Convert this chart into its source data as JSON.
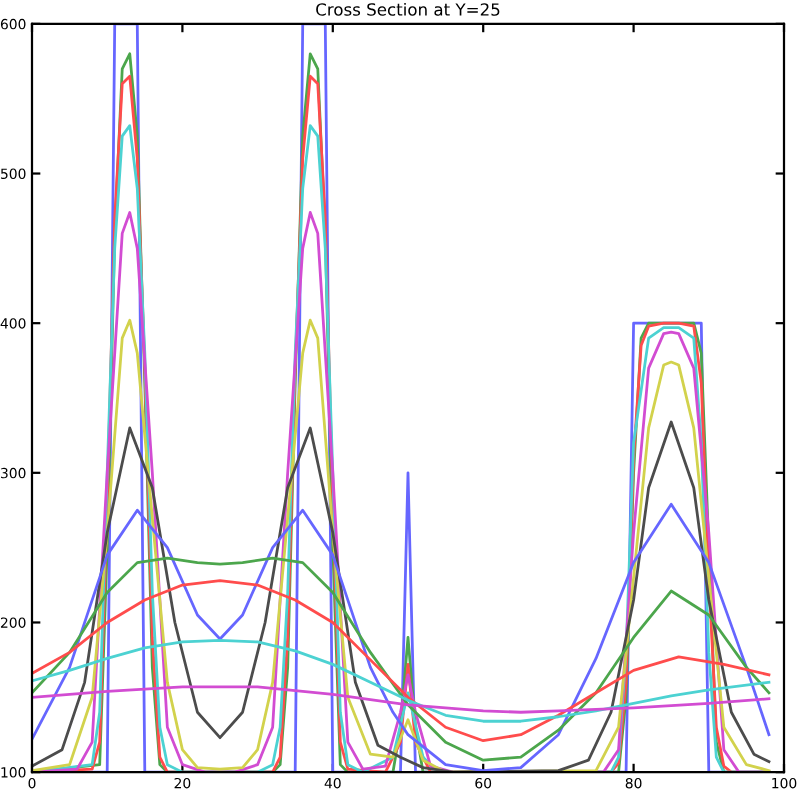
{
  "chart_data": {
    "type": "line",
    "title": "Cross Section at Y=25",
    "xlim": [
      0,
      100
    ],
    "ylim": [
      100,
      600
    ],
    "xticks": [
      0,
      20,
      40,
      60,
      80,
      100
    ],
    "yticks": [
      100,
      200,
      300,
      400,
      500,
      600
    ],
    "grid": false,
    "legend": false,
    "marker": "none",
    "line_style": "solid",
    "series": [
      {
        "color": "#6666ff",
        "x": [
          0,
          10,
          11,
          14,
          15,
          35,
          36,
          39,
          40,
          49,
          50,
          51,
          79,
          80,
          89,
          90,
          98
        ],
        "values": [
          100,
          100,
          600,
          600,
          100,
          100,
          600,
          600,
          100,
          100,
          300,
          100,
          100,
          400,
          400,
          100,
          100
        ]
      },
      {
        "color": "#4ca64c",
        "x": [
          0,
          9,
          10,
          11,
          12,
          13,
          14,
          15,
          16,
          17,
          18,
          32,
          33,
          34,
          35,
          36,
          37,
          38,
          39,
          40,
          41,
          42,
          48,
          49,
          50,
          51,
          52,
          78,
          79,
          80,
          81,
          82,
          88,
          89,
          90,
          91,
          92,
          98
        ],
        "values": [
          100,
          105,
          250,
          460,
          570,
          580,
          525,
          360,
          170,
          105,
          100,
          100,
          105,
          170,
          360,
          525,
          580,
          570,
          460,
          250,
          105,
          100,
          100,
          130,
          190,
          130,
          100,
          100,
          150,
          300,
          390,
          400,
          400,
          380,
          250,
          120,
          100,
          100
        ]
      },
      {
        "color": "#ff4c4c",
        "x": [
          0,
          8,
          9,
          10,
          11,
          12,
          13,
          14,
          15,
          16,
          17,
          18,
          32,
          33,
          34,
          35,
          36,
          37,
          38,
          39,
          40,
          41,
          42,
          47,
          49,
          50,
          51,
          53,
          77,
          78,
          79,
          80,
          81,
          82,
          84,
          86,
          88,
          89,
          90,
          91,
          92,
          93,
          98
        ],
        "values": [
          100,
          102,
          120,
          280,
          470,
          560,
          565,
          510,
          370,
          190,
          110,
          100,
          100,
          110,
          190,
          370,
          510,
          565,
          560,
          470,
          280,
          120,
          102,
          100,
          120,
          172,
          120,
          100,
          100,
          106,
          160,
          310,
          385,
          398,
          400,
          400,
          398,
          360,
          230,
          130,
          104,
          100,
          100
        ]
      },
      {
        "color": "#4cd2d2",
        "x": [
          0,
          8,
          9,
          10,
          11,
          12,
          13,
          14,
          15,
          16,
          17,
          18,
          20,
          30,
          32,
          33,
          34,
          35,
          36,
          37,
          38,
          39,
          40,
          41,
          42,
          44,
          48,
          50,
          52,
          54,
          77,
          78,
          79,
          80,
          82,
          84,
          86,
          88,
          89,
          90,
          91,
          92,
          98
        ],
        "values": [
          100,
          105,
          140,
          300,
          450,
          525,
          532,
          490,
          380,
          220,
          130,
          105,
          100,
          100,
          105,
          130,
          220,
          380,
          490,
          532,
          525,
          450,
          300,
          140,
          105,
          100,
          110,
          153,
          110,
          100,
          100,
          110,
          180,
          320,
          390,
          397,
          397,
          390,
          320,
          180,
          110,
          100,
          100
        ]
      },
      {
        "color": "#d24cd2",
        "x": [
          0,
          6,
          8,
          10,
          12,
          13,
          14,
          16,
          18,
          20,
          23,
          27,
          30,
          32,
          34,
          36,
          37,
          38,
          40,
          42,
          44,
          47,
          49,
          50,
          51,
          53,
          56,
          76,
          78,
          80,
          82,
          84,
          85,
          86,
          88,
          90,
          92,
          94,
          98
        ],
        "values": [
          100,
          102,
          120,
          300,
          460,
          474,
          450,
          300,
          130,
          105,
          100,
          100,
          105,
          130,
          300,
          450,
          474,
          460,
          300,
          120,
          102,
          104,
          140,
          165,
          140,
          104,
          100,
          100,
          115,
          260,
          370,
          393,
          394,
          393,
          370,
          260,
          115,
          100,
          100
        ]
      },
      {
        "color": "#d2d24c",
        "x": [
          0,
          5,
          8,
          10,
          12,
          13,
          14,
          16,
          18,
          20,
          22,
          25,
          28,
          30,
          32,
          34,
          36,
          37,
          38,
          40,
          42,
          45,
          48,
          50,
          52,
          55,
          75,
          78,
          80,
          82,
          84,
          85,
          86,
          88,
          90,
          92,
          95,
          98
        ],
        "values": [
          101,
          105,
          150,
          260,
          390,
          402,
          380,
          270,
          160,
          115,
          103,
          102,
          103,
          115,
          160,
          270,
          380,
          402,
          390,
          260,
          150,
          112,
          110,
          135,
          108,
          100,
          101,
          130,
          230,
          330,
          372,
          374,
          372,
          330,
          230,
          130,
          105,
          101
        ]
      },
      {
        "color": "#4c4c4c",
        "x": [
          0,
          4,
          7,
          10,
          13,
          16,
          19,
          22,
          25,
          28,
          31,
          34,
          37,
          40,
          43,
          46,
          49,
          52,
          56,
          70,
          74,
          77,
          80,
          82,
          85,
          88,
          90,
          93,
          96,
          98
        ],
        "values": [
          104,
          115,
          160,
          260,
          330,
          290,
          200,
          140,
          123,
          140,
          200,
          290,
          330,
          260,
          160,
          118,
          110,
          103,
          100,
          101,
          108,
          140,
          215,
          290,
          334,
          290,
          215,
          140,
          112,
          107
        ]
      },
      {
        "color": "#6666ff",
        "x": [
          0,
          5,
          10,
          14,
          18,
          22,
          25,
          28,
          32,
          36,
          40,
          45,
          48,
          50,
          55,
          60,
          65,
          70,
          75,
          80,
          85,
          90,
          95,
          98
        ],
        "values": [
          122,
          170,
          245,
          275,
          250,
          205,
          189,
          205,
          250,
          275,
          245,
          170,
          140,
          125,
          105,
          101,
          103,
          125,
          176,
          240,
          279,
          240,
          170,
          125
        ]
      },
      {
        "color": "#4ca64c",
        "x": [
          0,
          5,
          10,
          14,
          18,
          22,
          25,
          28,
          32,
          36,
          40,
          45,
          50,
          55,
          60,
          65,
          70,
          75,
          80,
          85,
          90,
          95,
          98
        ],
        "values": [
          153,
          180,
          220,
          240,
          243,
          240,
          239,
          240,
          243,
          240,
          220,
          180,
          145,
          120,
          108,
          110,
          128,
          153,
          190,
          221,
          205,
          170,
          153
        ]
      },
      {
        "color": "#ff4c4c",
        "x": [
          0,
          5,
          10,
          15,
          20,
          25,
          30,
          35,
          40,
          45,
          50,
          55,
          60,
          65,
          70,
          75,
          80,
          86,
          92,
          98
        ],
        "values": [
          166,
          180,
          200,
          215,
          225,
          228,
          225,
          215,
          200,
          175,
          150,
          130,
          121,
          125,
          138,
          153,
          168,
          177,
          172,
          165
        ]
      },
      {
        "color": "#4cd2d2",
        "x": [
          0,
          5,
          10,
          15,
          20,
          25,
          30,
          35,
          40,
          45,
          50,
          55,
          60,
          65,
          70,
          75,
          80,
          85,
          90,
          98
        ],
        "values": [
          161,
          168,
          176,
          183,
          187,
          188,
          187,
          181,
          172,
          160,
          148,
          138,
          134,
          134,
          137,
          141,
          146,
          151,
          155,
          160
        ]
      },
      {
        "color": "#d24cd2",
        "x": [
          0,
          10,
          20,
          25,
          30,
          40,
          50,
          60,
          65,
          70,
          80,
          90,
          98
        ],
        "values": [
          150,
          154,
          157,
          157,
          157,
          152,
          145,
          141,
          140,
          141,
          143,
          146,
          149
        ]
      }
    ]
  }
}
